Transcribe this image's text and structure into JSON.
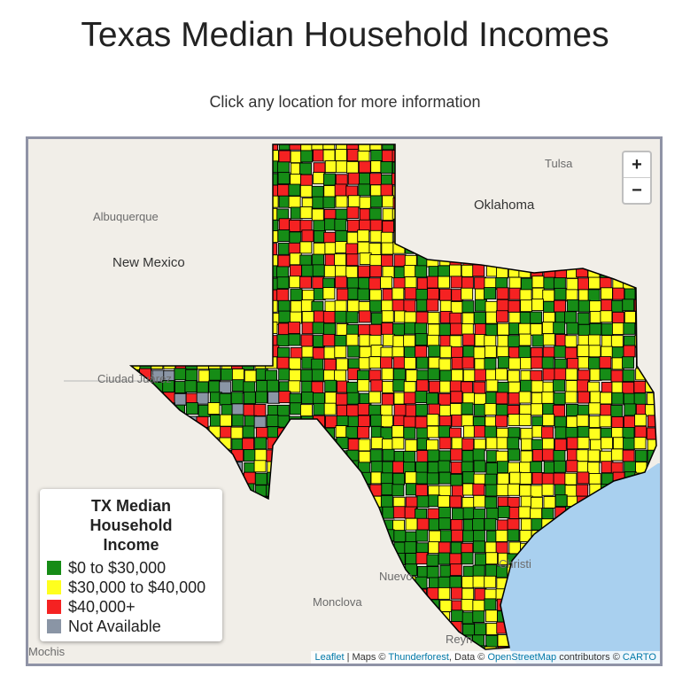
{
  "header": {
    "title": "Texas Median Household Incomes",
    "subtitle": "Click any location for more information"
  },
  "map": {
    "place_labels": [
      "Tulsa",
      "Oklahoma",
      "Albuquerque",
      "New Mexico",
      "Ciudad Juárez",
      "Nuevo",
      "Monclova",
      "Mochis",
      "Reyn",
      "Christi"
    ]
  },
  "zoom": {
    "in": "+",
    "out": "−"
  },
  "legend": {
    "title": "TX Median Household Income",
    "items": [
      {
        "label": "$0 to $30,000",
        "color": "#168c16"
      },
      {
        "label": "$30,000 to $40,000",
        "color": "#ffff1e"
      },
      {
        "label": "$40,000+",
        "color": "#f52222"
      },
      {
        "label": "Not Available",
        "color": "#8a95a5"
      }
    ]
  },
  "attribution": {
    "leaflet": "Leaflet",
    "maps": "| Maps ©",
    "thunderforest": "Thunderforest",
    "data": ", Data ©",
    "osm": "OpenStreetMap",
    "contrib": "contributors ©",
    "carto": "CARTO"
  }
}
